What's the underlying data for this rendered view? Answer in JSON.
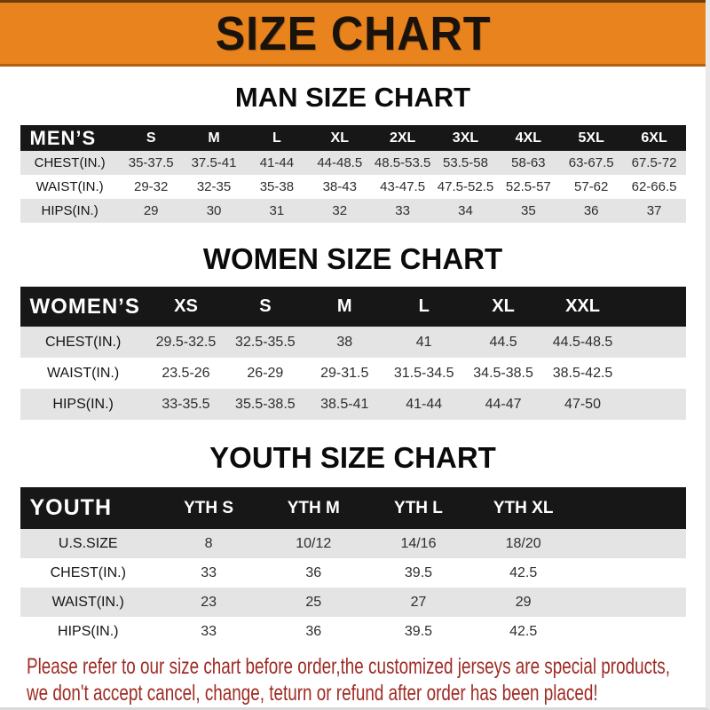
{
  "banner": {
    "title": "SIZE CHART"
  },
  "colors": {
    "banner_orange": "#e8831d",
    "header_bar_black": "#171717",
    "row_gray": "#e4e4e4",
    "footer_red": "#9e2b24"
  },
  "sections": [
    {
      "heading": "MAN SIZE CHART",
      "corner_label": "MEN’S",
      "columns": [
        "S",
        "M",
        "L",
        "XL",
        "2XL",
        "3XL",
        "4XL",
        "5XL",
        "6XL"
      ],
      "rows": [
        {
          "label": "CHEST(IN.)",
          "values": [
            "35-37.5",
            "37.5-41",
            "41-44",
            "44-48.5",
            "48.5-53.5",
            "53.5-58",
            "58-63",
            "63-67.5",
            "67.5-72"
          ]
        },
        {
          "label": "WAIST(IN.)",
          "values": [
            "29-32",
            "32-35",
            "35-38",
            "38-43",
            "43-47.5",
            "47.5-52.5",
            "52.5-57",
            "57-62",
            "62-66.5"
          ]
        },
        {
          "label": "HIPS(IN.)",
          "values": [
            "29",
            "30",
            "31",
            "32",
            "33",
            "34",
            "35",
            "36",
            "37"
          ]
        }
      ]
    },
    {
      "heading": "WOMEN SIZE CHART",
      "corner_label": "WOMEN’S",
      "columns": [
        "XS",
        "S",
        "M",
        "L",
        "XL",
        "XXL"
      ],
      "rows": [
        {
          "label": "CHEST(IN.)",
          "values": [
            "29.5-32.5",
            "32.5-35.5",
            "38",
            "41",
            "44.5",
            "44.5-48.5"
          ]
        },
        {
          "label": "WAIST(IN.)",
          "values": [
            "23.5-26",
            "26-29",
            "29-31.5",
            "31.5-34.5",
            "34.5-38.5",
            "38.5-42.5"
          ]
        },
        {
          "label": "HIPS(IN.)",
          "values": [
            "33-35.5",
            "35.5-38.5",
            "38.5-41",
            "41-44",
            "44-47",
            "47-50"
          ]
        }
      ]
    },
    {
      "heading": "YOUTH SIZE CHART",
      "corner_label": "YOUTH",
      "columns": [
        "YTH S",
        "YTH M",
        "YTH L",
        "YTH XL"
      ],
      "rows": [
        {
          "label": "U.S.SIZE",
          "values": [
            "8",
            "10/12",
            "14/16",
            "18/20"
          ]
        },
        {
          "label": "CHEST(IN.)",
          "values": [
            "33",
            "36",
            "39.5",
            "42.5"
          ]
        },
        {
          "label": "WAIST(IN.)",
          "values": [
            "23",
            "25",
            "27",
            "29"
          ]
        },
        {
          "label": "HIPS(IN.)",
          "values": [
            "33",
            "36",
            "39.5",
            "42.5"
          ]
        }
      ]
    }
  ],
  "footer": {
    "line1": "Please refer to our size chart before order,the customized jerseys are special products,",
    "line2": "we don't accept cancel, change, teturn or refund after order has been placed!"
  }
}
